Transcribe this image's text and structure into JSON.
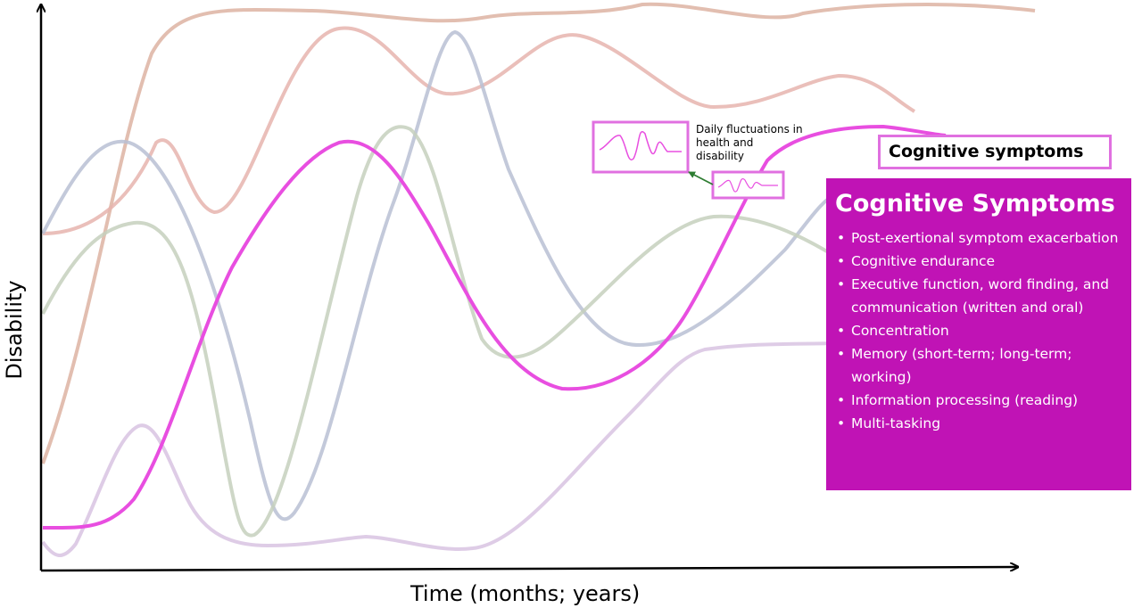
{
  "axes": {
    "y_label": "Disability",
    "x_label": "Time (months; years)"
  },
  "callout": {
    "text": "Daily fluctuations in health and disability"
  },
  "header": {
    "label": "Cognitive symptoms"
  },
  "panel": {
    "title": "Cognitive Symptoms",
    "items": [
      "Post-exertional symptom exacerbation",
      "Cognitive endurance",
      "Executive function, word finding, and communication (written and oral)",
      "Concentration",
      "Memory (short-term; long-term; working)",
      "Information processing (reading)",
      "Multi-tasking"
    ]
  },
  "colors": {
    "highlight": "#e84ee0",
    "panel_bg": "#c013b5",
    "muted_tan": "#ddb3a2",
    "muted_salmon": "#e6b4ae",
    "muted_blue": "#b9c0d3",
    "muted_green": "#c5d0bd",
    "muted_lavender": "#d8c3e2",
    "arrow_green": "#2e7d32"
  }
}
